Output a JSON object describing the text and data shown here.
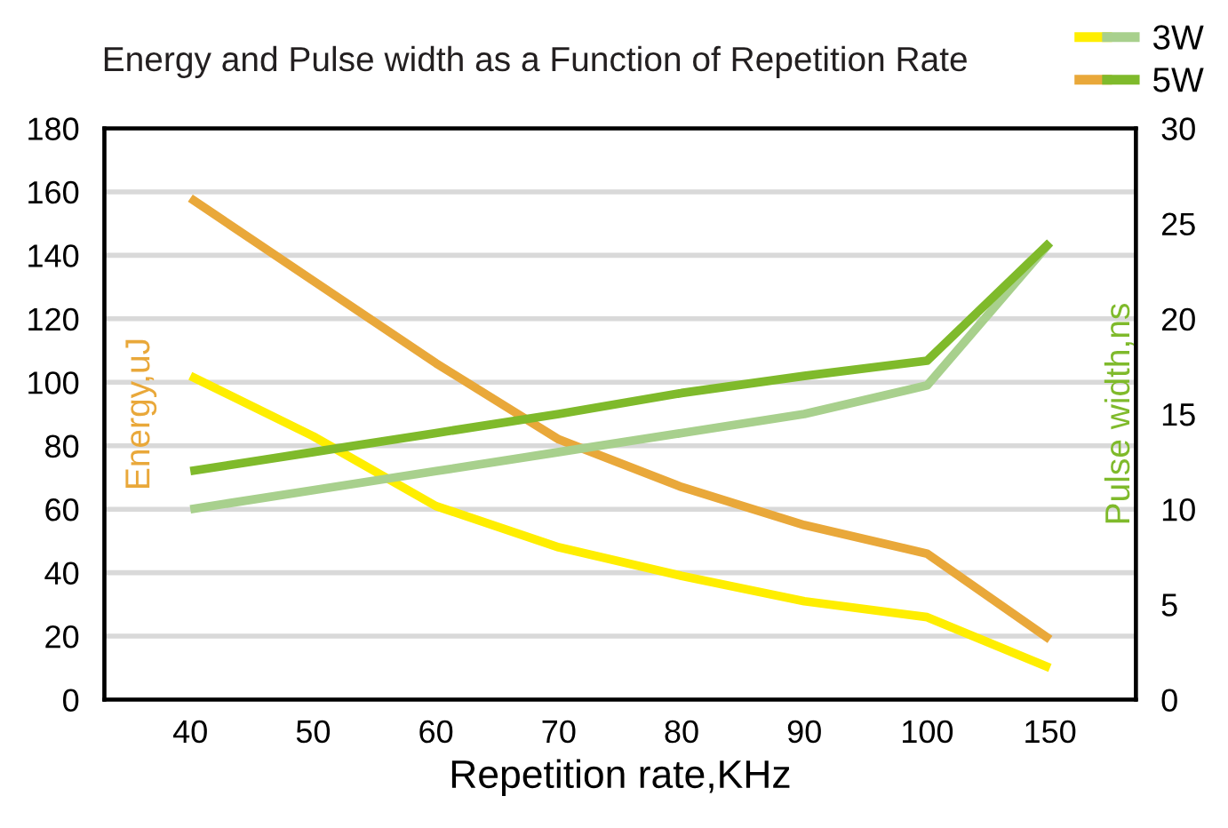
{
  "chart_data": {
    "type": "line",
    "title": "Energy and Pulse width as a Function of Repetition Rate",
    "categories": [
      "40",
      "50",
      "60",
      "70",
      "80",
      "90",
      "100",
      "150"
    ],
    "xlabel": "Repetition rate,KHz",
    "ylabel": "Energy,uJ",
    "y2label": "Pulse width,ns",
    "ylim": [
      0,
      180
    ],
    "yticks": [
      0,
      20,
      40,
      60,
      80,
      100,
      120,
      140,
      160,
      180
    ],
    "y2lim": [
      0,
      30
    ],
    "y2ticks": [
      0,
      5,
      10,
      15,
      20,
      25,
      30
    ],
    "grid": "y",
    "legend": "top right",
    "line_style": "solid",
    "marker": "none",
    "series": [
      {
        "name": "3W",
        "color": "#ffee00",
        "values": [
          102,
          83,
          61,
          48,
          39,
          31,
          26,
          10
        ]
      },
      {
        "name": "5W",
        "color": "#e9a83a",
        "values": [
          158,
          132,
          106,
          82,
          67,
          55,
          46,
          19
        ]
      },
      {
        "color": "#a8d08d",
        "axis": "y2",
        "values": [
          10,
          11,
          12,
          13,
          14,
          15,
          16.5,
          24
        ]
      },
      {
        "color": "#7fba2b",
        "axis": "y2",
        "values": [
          12,
          13,
          14,
          15,
          16.1,
          17,
          17.8,
          24
        ]
      }
    ]
  }
}
